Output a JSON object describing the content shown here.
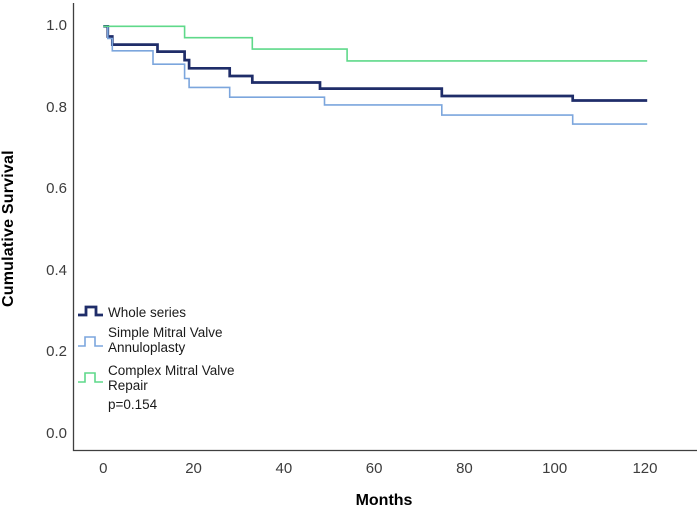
{
  "chart_data": {
    "type": "line",
    "subtype": "kaplan-meier-step",
    "title": "",
    "xlabel": "Months",
    "ylabel": "Cumulative Survival",
    "xlim": [
      0,
      120
    ],
    "ylim": [
      0.0,
      1.0
    ],
    "grid": false,
    "legend_position": "inside-lower-left",
    "annotation": "p=0.154",
    "xticks": [
      {
        "label": "0",
        "value": 0
      },
      {
        "label": "20",
        "value": 20
      },
      {
        "label": "40",
        "value": 40
      },
      {
        "label": "60",
        "value": 60
      },
      {
        "label": "80",
        "value": 80
      },
      {
        "label": "100",
        "value": 100
      },
      {
        "label": "120",
        "value": 120
      }
    ],
    "yticks": [
      {
        "label": "1.0",
        "value": 1.0
      },
      {
        "label": "0.8",
        "value": 0.8
      },
      {
        "label": "0.6",
        "value": 0.6
      },
      {
        "label": "0.4",
        "value": 0.4
      },
      {
        "label": "0.2",
        "value": 0.2
      },
      {
        "label": "0.0",
        "value": 0.0
      }
    ],
    "series": [
      {
        "name": "Whole series",
        "color": "#1f2d69",
        "stroke_width": 2.7,
        "end_month": 120.5,
        "points": [
          [
            0,
            1.0
          ],
          [
            1,
            0.975
          ],
          [
            2,
            0.955
          ],
          [
            12,
            0.938
          ],
          [
            18,
            0.917
          ],
          [
            19,
            0.897
          ],
          [
            28,
            0.878
          ],
          [
            33,
            0.862
          ],
          [
            48,
            0.847
          ],
          [
            75,
            0.829
          ],
          [
            104,
            0.818
          ]
        ]
      },
      {
        "name": "Simple Mitral Valve Annuloplasty",
        "color": "#7ca6dd",
        "stroke_width": 1.6,
        "end_month": 120.5,
        "points": [
          [
            0,
            1.0
          ],
          [
            1,
            0.97
          ],
          [
            2,
            0.94
          ],
          [
            11,
            0.907
          ],
          [
            18,
            0.872
          ],
          [
            19,
            0.85
          ],
          [
            28,
            0.826
          ],
          [
            49,
            0.807
          ],
          [
            75,
            0.782
          ],
          [
            104,
            0.76
          ]
        ]
      },
      {
        "name": "Complex Mitral Valve Repair",
        "color": "#5fd98a",
        "stroke_width": 1.6,
        "end_month": 120.5,
        "points": [
          [
            0,
            1.0
          ],
          [
            18,
            0.972
          ],
          [
            33,
            0.944
          ],
          [
            54,
            0.915
          ]
        ]
      }
    ]
  },
  "axes": {
    "y_title": "Cumulative Survival",
    "x_title": "Months",
    "axis_color": "#3f3f3f"
  },
  "legend": {
    "items": [
      {
        "label": "Whole series"
      },
      {
        "label": "Simple Mitral Valve\nAnnuloplasty"
      },
      {
        "label": "Complex Mitral Valve\nRepair"
      }
    ],
    "p_value": "p=0.154"
  }
}
